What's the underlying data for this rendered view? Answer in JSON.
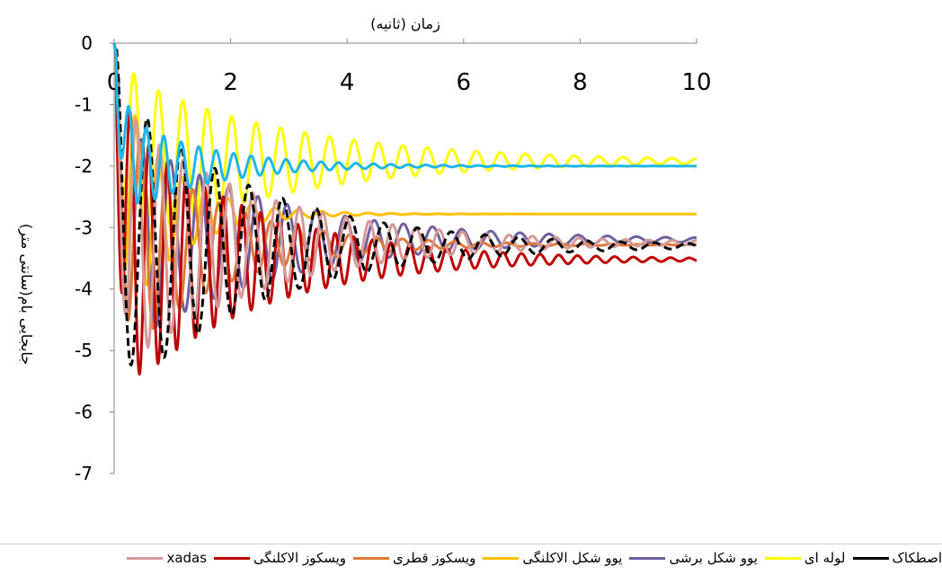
{
  "chart_data": {
    "type": "line",
    "title": "",
    "xlabel": "زمان (ثانیه)",
    "ylabel": "جابجایی بام(سانتی متر)",
    "xlim": [
      0,
      10
    ],
    "ylim": [
      -7,
      0
    ],
    "xticks": [
      "0",
      "2",
      "4",
      "6",
      "8",
      "10"
    ],
    "yticks": [
      "0",
      "-1",
      "-2",
      "-3",
      "-4",
      "-5",
      "-6",
      "-7"
    ],
    "legend_position": "bottom",
    "series": [
      {
        "name": "لوله ای",
        "color": "#ffff00",
        "dash": false,
        "final": -1.92,
        "amp": 1.5,
        "period": 0.42,
        "tau": 2.8,
        "phase": 1.2
      },
      {
        "name": "یوو شکل برشی",
        "color": "#7060a0",
        "dash": false,
        "final": -3.2,
        "amp": 1.9,
        "period": 0.5,
        "tau": 2.5,
        "phase": 0.4
      },
      {
        "name": "یوو شکل الاکلنگی",
        "color": "#ffc000",
        "dash": false,
        "final": -2.78,
        "amp": 2.2,
        "period": 0.4,
        "tau": 0.9,
        "phase": 0.6
      },
      {
        "name": "ویسکوز قطری",
        "color": "#e07a3a",
        "dash": false,
        "final": -3.28,
        "amp": 2.1,
        "period": 0.45,
        "tau": 1.6,
        "phase": 0.0
      },
      {
        "name": "ویسکوز الاکلنگی",
        "color": "#c00000",
        "dash": false,
        "final": -3.52,
        "amp": 2.4,
        "period": 0.32,
        "tau": 2.2,
        "phase": 0.9
      },
      {
        "name": "xadas",
        "color": "#d49a9a",
        "dash": false,
        "final": -3.25,
        "amp": 2.2,
        "period": 0.4,
        "tau": 2.4,
        "phase": 0.3
      },
      {
        "name": "اصطکاک",
        "color": "#000000",
        "dash": true,
        "final": -3.3,
        "amp": 2.6,
        "period": 0.58,
        "tau": 2.4,
        "phase": 0.1
      },
      {
        "name": "",
        "color": "#1fb7ea",
        "dash": false,
        "final": -2.0,
        "amp": 0.9,
        "period": 0.3,
        "tau": 1.4,
        "phase": 1.0
      }
    ]
  },
  "legend": {
    "items": [
      {
        "label": "اصطکاک",
        "color": "#000000"
      },
      {
        "label": "لوله ای",
        "color": "#ffff00"
      },
      {
        "label": "یوو شکل برشی",
        "color": "#7060a0"
      },
      {
        "label": "یوو شکل الاکلنگی",
        "color": "#ffc000"
      },
      {
        "label": "ویسکوز قطری",
        "color": "#e07a3a"
      },
      {
        "label": "ویسکوز الاکلنگی",
        "color": "#c00000"
      },
      {
        "label": "xadas",
        "color": "#d49a9a"
      }
    ]
  }
}
